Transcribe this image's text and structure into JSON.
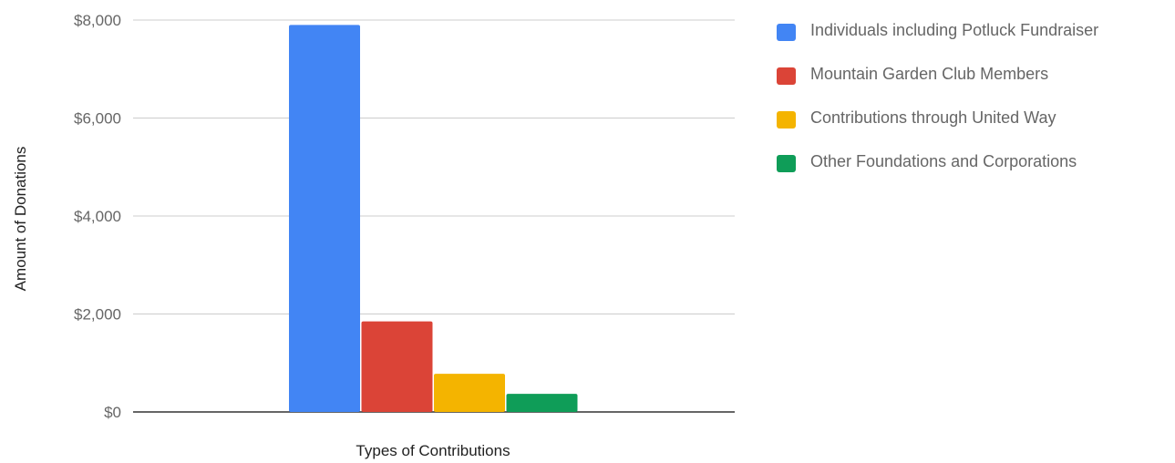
{
  "chart_data": {
    "type": "bar",
    "title": "",
    "xlabel": "Types of Contributions",
    "ylabel": "Amount of Donations",
    "ylim": [
      0,
      8000
    ],
    "yticks": [
      0,
      2000,
      4000,
      6000,
      8000
    ],
    "ytick_labels": [
      "$0",
      "$2,000",
      "$4,000",
      "$6,000",
      "$8,000"
    ],
    "grid": true,
    "legend_position": "right",
    "categories": [
      "Types of Contributions"
    ],
    "series": [
      {
        "name": "Individuals including Potluck Fundraiser",
        "values": [
          7900
        ],
        "color": "#4285F4"
      },
      {
        "name": "Mountain Garden Club Members",
        "values": [
          1850
        ],
        "color": "#DB4437"
      },
      {
        "name": "Contributions through United Way",
        "values": [
          780
        ],
        "color": "#F4B400"
      },
      {
        "name": "Other Foundations and Corporations",
        "values": [
          370
        ],
        "color": "#0F9D58"
      }
    ]
  }
}
